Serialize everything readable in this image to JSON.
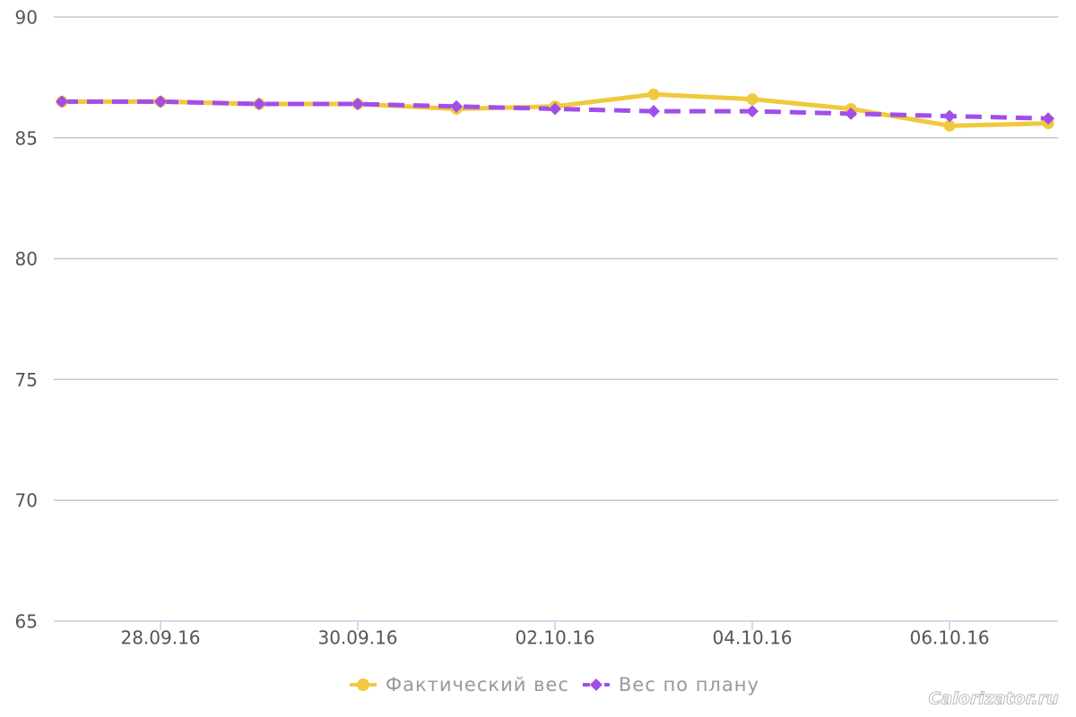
{
  "chart_data": {
    "type": "line",
    "categories": [
      null,
      "28.09.16",
      null,
      "30.09.16",
      null,
      "02.10.16",
      null,
      "04.10.16",
      null,
      "06.10.16",
      null
    ],
    "series": [
      {
        "name": "Фактический вес",
        "color": "#f0c93c",
        "values": [
          86.5,
          86.5,
          86.4,
          86.4,
          86.2,
          86.3,
          86.8,
          86.6,
          86.2,
          85.5,
          85.6
        ]
      },
      {
        "name": "Вес по плану",
        "color": "#a24ee8",
        "values": [
          86.5,
          86.5,
          86.4,
          86.4,
          86.3,
          86.2,
          86.1,
          86.1,
          86.0,
          85.9,
          85.8
        ]
      }
    ],
    "ylim": [
      65,
      90
    ],
    "yticks": [
      65,
      70,
      75,
      80,
      85,
      90
    ],
    "grid": true,
    "watermark": "Calorizator.ru"
  }
}
